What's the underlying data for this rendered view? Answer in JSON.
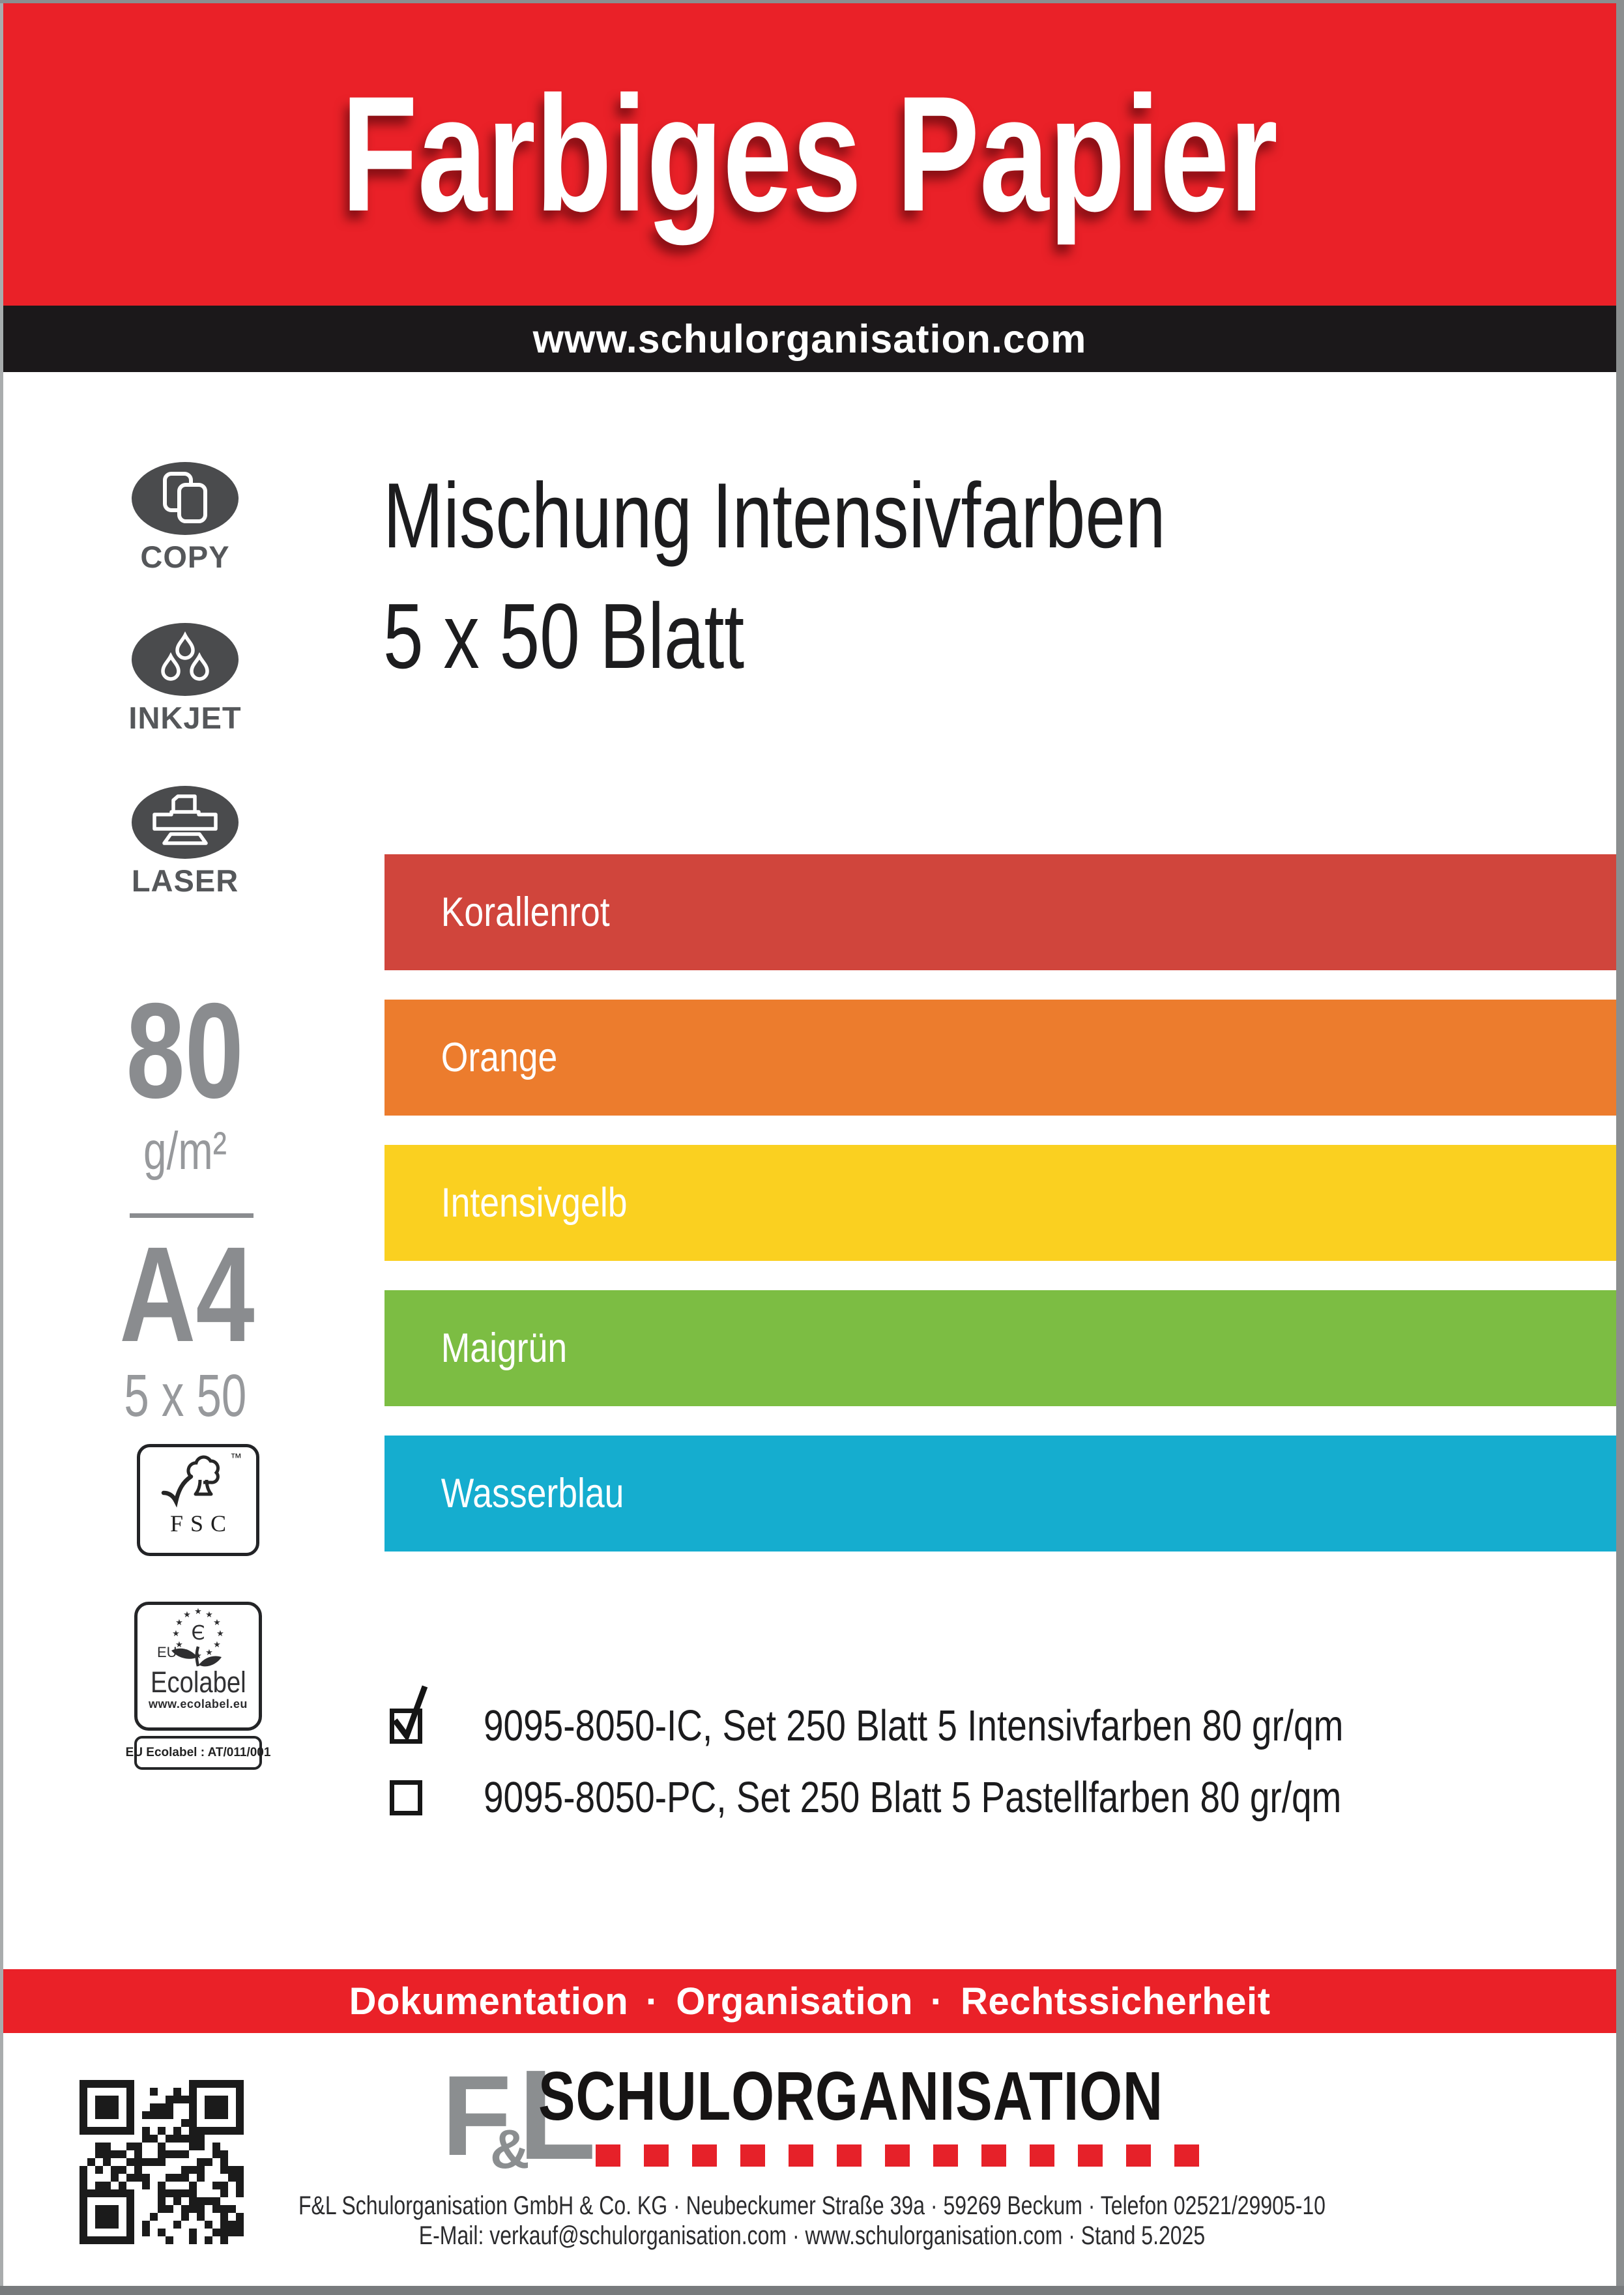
{
  "header": {
    "title": "Farbiges Papier",
    "bg_color": "#ea2128",
    "website_bar": {
      "text": "www.schulorganisation.com",
      "bg_color": "#1b181a"
    }
  },
  "sidebar": {
    "print_icons": [
      {
        "icon": "copy-icon",
        "label": "COPY"
      },
      {
        "icon": "inkjet-icon",
        "label": "INKJET"
      },
      {
        "icon": "laser-icon",
        "label": "LASER"
      }
    ],
    "grammage": {
      "value": "80",
      "unit": "g/m²"
    },
    "format": {
      "value": "A4",
      "sheets": "5 x 50"
    },
    "fsc_label": {
      "text": "FSC",
      "tm": "™"
    },
    "eu_ecolabel": {
      "eu": "EU",
      "name": "Ecolabel",
      "url": "www.ecolabel.eu",
      "license": "EU Ecolabel : AT/011/001"
    }
  },
  "product": {
    "title_line1": "Mischung Intensivfarben",
    "title_line2": "5 x 50 Blatt"
  },
  "color_swatches": [
    {
      "label": "Korallenrot",
      "hex": "#d0453c"
    },
    {
      "label": "Orange",
      "hex": "#ec7c2d"
    },
    {
      "label": "Intensivgelb",
      "hex": "#fad020"
    },
    {
      "label": "Maigrün",
      "hex": "#7cbd43"
    },
    {
      "label": "Wasserblau",
      "hex": "#15adcf"
    }
  ],
  "variants": [
    {
      "checked": true,
      "label": "9095-8050-IC, Set 250 Blatt 5 Intensivfarben 80 gr/qm"
    },
    {
      "checked": false,
      "label": "9095-8050-PC, Set 250 Blatt 5 Pastellfarben 80 gr/qm"
    }
  ],
  "slogan_banner": {
    "text": "Dokumentation · Organisation · Rechtssicherheit",
    "bg_color": "#ea2128"
  },
  "brand": {
    "initial_f": "F",
    "initial_amp": "&",
    "initial_l": "L",
    "name": "SCHULORGANISATION",
    "squares_count": 13,
    "squares_color": "#e62129",
    "grey": "#8b8e90"
  },
  "footer": {
    "line1": "F&L Schulorganisation GmbH & Co. KG · Neubeckumer Straße 39a · 59269 Beckum · Telefon 02521/29905-10",
    "line2": "E-Mail: verkauf@schulorganisation.com · www.schulorganisation.com · Stand 5.2025"
  }
}
